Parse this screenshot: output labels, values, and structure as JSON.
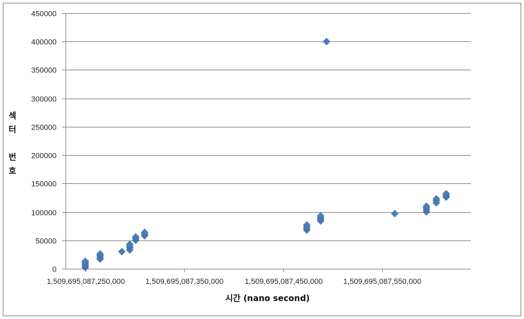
{
  "chart_data": {
    "type": "scatter",
    "title": "",
    "xlabel": "시간 (nano second)",
    "ylabel_chars": [
      "섹",
      "터",
      "",
      "번",
      "호"
    ],
    "xlim": [
      1509695087230000,
      1509695087640000
    ],
    "ylim": [
      0,
      450000
    ],
    "y_ticks": [
      0,
      50000,
      100000,
      150000,
      200000,
      250000,
      300000,
      350000,
      400000,
      450000
    ],
    "y_tick_labels": [
      "0",
      "50000",
      "100000",
      "150000",
      "200000",
      "250000",
      "300000",
      "350000",
      "400000",
      "450000"
    ],
    "x_ticks": [
      1509695087250000,
      1509695087350000,
      1509695087450000,
      1509695087550000
    ],
    "x_tick_labels": [
      "1,509,695,087,250,000",
      "1,509,695,087,350,000",
      "1,509,695,087,450,000",
      "1,509,695,087,550,000"
    ],
    "grid": {
      "horizontal": true,
      "vertical": false
    },
    "marker": "diamond",
    "series_color": "#4a7ebb",
    "points": [
      [
        1509695087250000,
        2000
      ],
      [
        1509695087250000,
        5000
      ],
      [
        1509695087250000,
        8000
      ],
      [
        1509695087250000,
        11000
      ],
      [
        1509695087250000,
        13000
      ],
      [
        1509695087265000,
        17000
      ],
      [
        1509695087265000,
        20000
      ],
      [
        1509695087265000,
        23000
      ],
      [
        1509695087265000,
        26000
      ],
      [
        1509695087287000,
        30000
      ],
      [
        1509695087295000,
        33000
      ],
      [
        1509695087295000,
        37000
      ],
      [
        1509695087295000,
        40000
      ],
      [
        1509695087295000,
        43000
      ],
      [
        1509695087301000,
        50000
      ],
      [
        1509695087301000,
        53000
      ],
      [
        1509695087301000,
        56000
      ],
      [
        1509695087310000,
        58000
      ],
      [
        1509695087310000,
        61000
      ],
      [
        1509695087310000,
        64000
      ],
      [
        1509695087474000,
        68000
      ],
      [
        1509695087474000,
        71000
      ],
      [
        1509695087474000,
        74000
      ],
      [
        1509695087474000,
        77000
      ],
      [
        1509695087488000,
        84000
      ],
      [
        1509695087488000,
        87000
      ],
      [
        1509695087488000,
        90000
      ],
      [
        1509695087488000,
        93000
      ],
      [
        1509695087494000,
        400000
      ],
      [
        1509695087563000,
        97000
      ],
      [
        1509695087595000,
        100000
      ],
      [
        1509695087595000,
        104000
      ],
      [
        1509695087595000,
        107000
      ],
      [
        1509695087595000,
        110000
      ],
      [
        1509695087605000,
        116000
      ],
      [
        1509695087605000,
        120000
      ],
      [
        1509695087605000,
        123000
      ],
      [
        1509695087615000,
        126000
      ],
      [
        1509695087615000,
        129000
      ],
      [
        1509695087615000,
        132000
      ]
    ]
  }
}
